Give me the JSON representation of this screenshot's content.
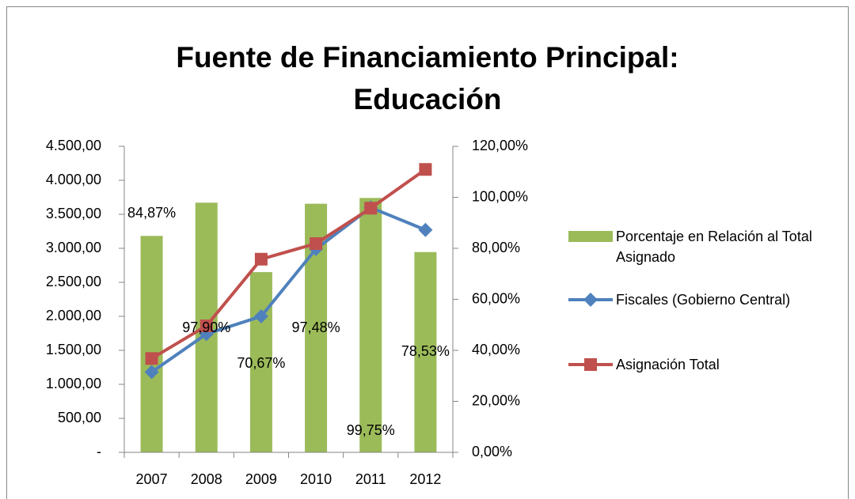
{
  "chart_data": {
    "type": "bar_line",
    "title": "Fuente de Financiamiento Principal:",
    "title_line2": "Educación",
    "categories": [
      "2007",
      "2008",
      "2009",
      "2010",
      "2011",
      "2012"
    ],
    "series": [
      {
        "name": "Porcentaje en Relación al Total Asignado",
        "type": "bar",
        "axis": "y2",
        "color": "#9bbb59",
        "values": [
          84.87,
          97.9,
          70.67,
          97.48,
          99.75,
          78.53
        ],
        "value_labels": [
          "84,87%",
          "97,90%",
          "70,67%",
          "97,48%",
          "99,75%",
          "78,53%"
        ]
      },
      {
        "name": "Fiscales (Gobierno Central)",
        "type": "line",
        "color": "#4f81bd",
        "marker": "diamond",
        "values": [
          1180,
          1740,
          2000,
          2990,
          3600,
          3270
        ]
      },
      {
        "name": "Asignación Total",
        "type": "line",
        "color": "#c0504d",
        "marker": "square",
        "values": [
          1380,
          1860,
          2840,
          3070,
          3590,
          4160
        ]
      }
    ],
    "ylim": [
      0,
      4500
    ],
    "yticks": [
      {
        "value": 0,
        "label": "-"
      },
      {
        "value": 500,
        "label": "500,00"
      },
      {
        "value": 1000,
        "label": "1.000,00"
      },
      {
        "value": 1500,
        "label": "1.500,00"
      },
      {
        "value": 2000,
        "label": "2.000,00"
      },
      {
        "value": 2500,
        "label": "2.500,00"
      },
      {
        "value": 3000,
        "label": "3.000,00"
      },
      {
        "value": 3500,
        "label": "3.500,00"
      },
      {
        "value": 4000,
        "label": "4.000,00"
      },
      {
        "value": 4500,
        "label": "4.500,00"
      }
    ],
    "y2lim": [
      0,
      120
    ],
    "y2ticks": [
      {
        "value": 0,
        "label": "0,00%"
      },
      {
        "value": 20,
        "label": "20,00%"
      },
      {
        "value": 40,
        "label": "40,00%"
      },
      {
        "value": 60,
        "label": "60,00%"
      },
      {
        "value": 80,
        "label": "80,00%"
      },
      {
        "value": 100,
        "label": "100,00%"
      },
      {
        "value": 120,
        "label": "120,00%"
      }
    ],
    "legend": "right"
  }
}
